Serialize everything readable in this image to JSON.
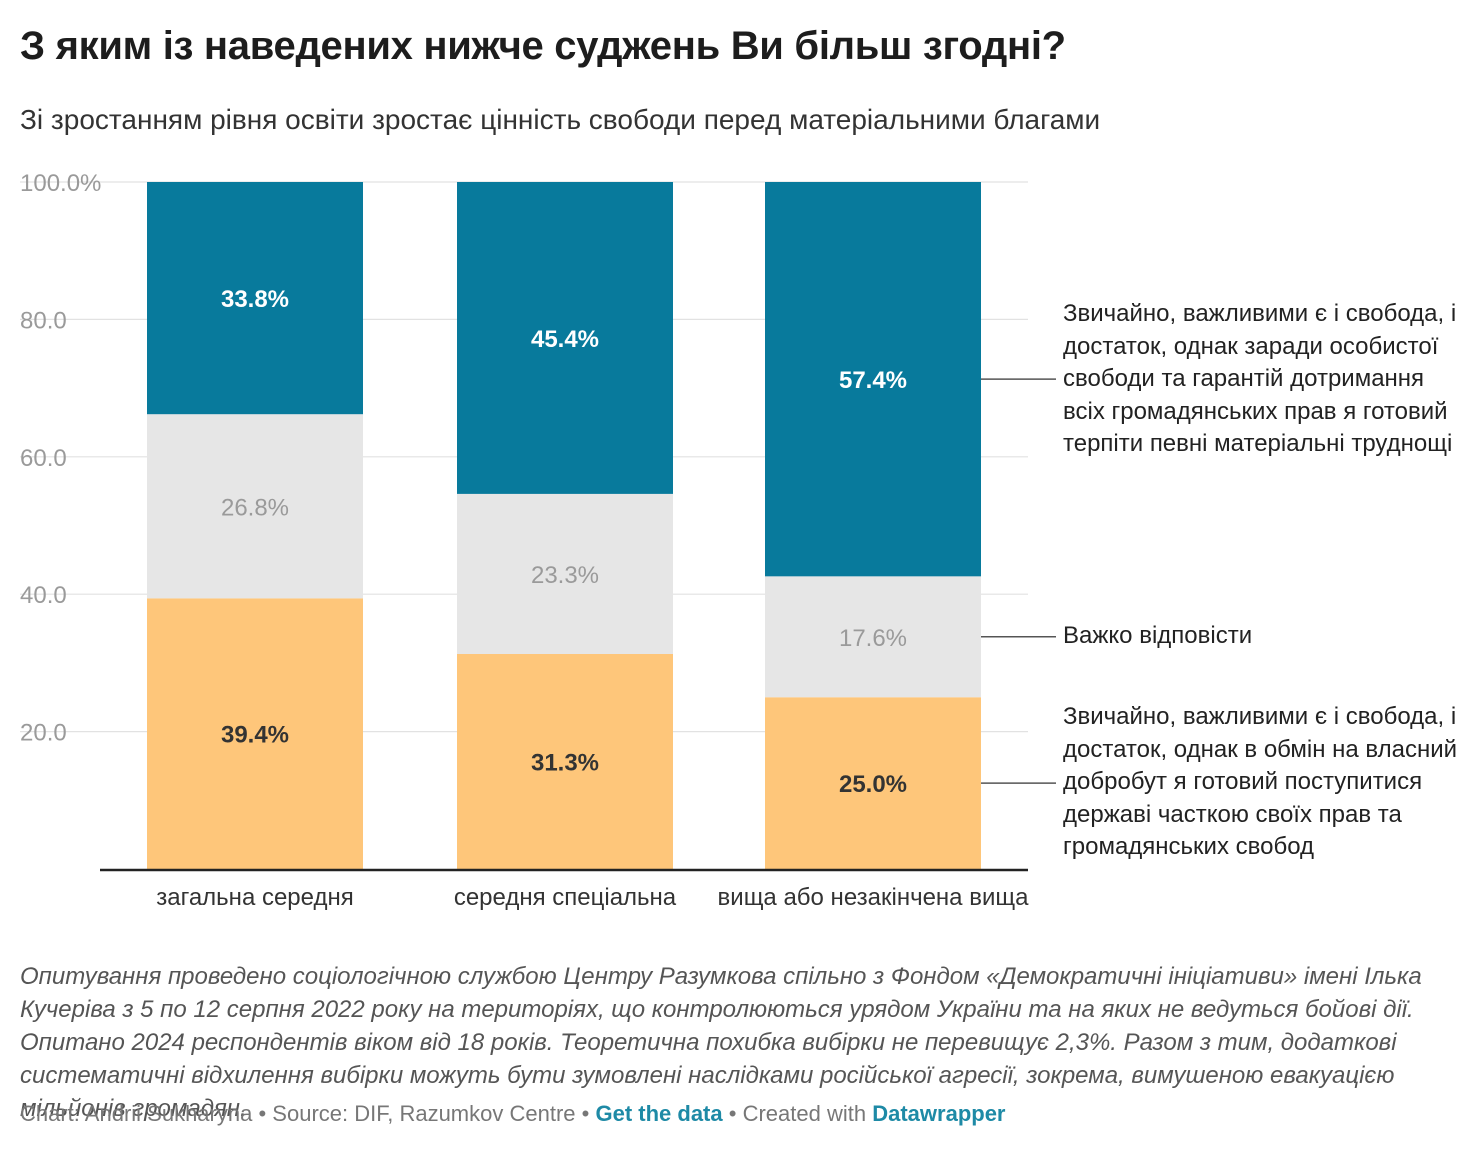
{
  "title": "З яким із наведених нижче суджень Ви більш згодні?",
  "subtitle": "Зі зростанням рівня освіти зростає цінність свободи перед матеріальними благами",
  "chart_data": {
    "type": "bar",
    "stacked": true,
    "categories": [
      "загальна середня",
      "середня спеціальна",
      "вища або незакінчена вища"
    ],
    "series": [
      {
        "name": "Звичайно, важливими є і свобода, і достаток, однак в обмін на власний добробут я готовий поступитися державі часткою своїх прав та громадянських свобод",
        "values": [
          39.4,
          31.3,
          25.0
        ],
        "labels": [
          "39.4%",
          "31.3%",
          "25.0%"
        ],
        "color": "#fec67a",
        "label_color": "#333333"
      },
      {
        "name": "Важко відповісти",
        "values": [
          26.8,
          23.3,
          17.6
        ],
        "labels": [
          "26.8%",
          "23.3%",
          "17.6%"
        ],
        "color": "#e6e6e6",
        "label_color": "#9a9a9a"
      },
      {
        "name": "Звичайно, важливими є і свобода, і достаток, однак заради особистої свободи та гарантій дотримання всіх громадянських прав я готовий терпіти певні матеріальні труднощі",
        "values": [
          33.8,
          45.4,
          57.4
        ],
        "labels": [
          "33.8%",
          "45.4%",
          "57.4%"
        ],
        "color": "#087a9c",
        "label_color": "#ffffff"
      }
    ],
    "y_ticks": [
      "20.0",
      "40.0",
      "60.0",
      "80.0",
      "100.0%"
    ],
    "y_tick_values": [
      20,
      40,
      60,
      80,
      100
    ],
    "ylim": [
      0,
      100
    ],
    "grid": true,
    "legend_placement": "right, inline labels"
  },
  "notes": "Опитування проведено соціологічною службою Центру Разумкова спільно з Фондом «Демократичні ініціативи» імені Ілька Кучеріва з 5 по 12 серпня 2022 року на територіях, що контролюються урядом України та на яких не ведуться бойові дії. Опитано 2024 респондентів віком від 18 років. Теоретична похибка вибірки не перевищує 2,3%. Разом з тим, додаткові систематичні відхилення вибірки можуть бути зумовлені наслідками російської агресії, зокрема, вимушеною евакуацією мільйонів громадян.",
  "footer": {
    "credit": "Chart: Andrii Sukharyna",
    "source": "Source: DIF, Razumkov Centre",
    "get_data": "Get the data",
    "created_with": "Created with",
    "tool": "Datawrapper",
    "separator": "•"
  }
}
